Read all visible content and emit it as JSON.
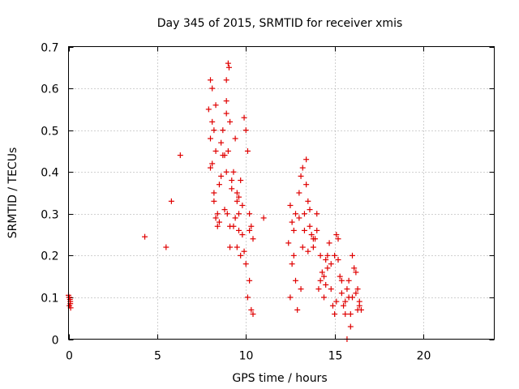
{
  "chart_data": {
    "type": "scatter",
    "title": "Day 345 of 2015, SRMTID for receiver xmis",
    "xlabel": "GPS time / hours",
    "ylabel": "SRMTID / TECUs",
    "xlim": [
      0,
      24
    ],
    "ylim": [
      0,
      0.7
    ],
    "xticks": [
      0,
      5,
      10,
      15,
      20
    ],
    "yticks": [
      0,
      0.1,
      0.2,
      0.3,
      0.4,
      0.5,
      0.6,
      0.7
    ],
    "xtick_labels": [
      "0",
      "5",
      "10",
      "15",
      "20"
    ],
    "ytick_labels": [
      "0",
      "0.1",
      "0.2",
      "0.3",
      "0.4",
      "0.5",
      "0.6",
      "0.7"
    ],
    "grid": true,
    "marker": "+",
    "color": "#e00000",
    "series": [
      {
        "name": "SRMTID",
        "x": [
          0.0,
          0.05,
          0.1,
          0.05,
          0.1,
          0.08,
          0.12,
          0.03,
          4.3,
          5.5,
          5.8,
          6.3,
          7.9,
          8.0,
          8.1,
          8.2,
          8.3,
          8.1,
          8.0,
          8.2,
          8.4,
          8.5,
          8.6,
          8.3,
          8.7,
          8.8,
          8.9,
          9.0,
          8.9,
          9.05,
          8.9,
          9.1,
          8.95,
          9.2,
          9.3,
          9.1,
          9.4,
          9.5,
          9.6,
          9.7,
          9.8,
          9.5,
          9.9,
          10.0,
          10.1,
          10.2,
          9.7,
          10.3,
          10.4,
          10.2,
          10.3,
          8.2,
          8.4,
          8.6,
          8.8,
          9.0,
          9.2,
          9.4,
          9.6,
          9.8,
          10.0,
          8.1,
          8.5,
          9.1,
          9.6,
          10.1,
          8.3,
          8.9,
          9.3,
          9.9,
          10.2,
          8.0,
          8.7,
          9.5,
          10.4,
          11.0,
          12.4,
          12.5,
          12.6,
          12.7,
          12.8,
          12.5,
          12.9,
          13.0,
          13.1,
          13.2,
          13.3,
          13.4,
          13.5,
          13.6,
          13.7,
          13.8,
          13.2,
          13.9,
          14.0,
          14.1,
          14.2,
          14.3,
          14.4,
          14.5,
          14.6,
          14.7,
          14.8,
          14.9,
          15.0,
          15.1,
          15.2,
          15.3,
          15.4,
          15.5,
          15.6,
          15.7,
          15.8,
          15.9,
          16.0,
          16.1,
          16.2,
          16.3,
          16.4,
          16.5,
          12.6,
          13.0,
          13.4,
          13.8,
          14.2,
          14.6,
          15.0,
          15.4,
          15.8,
          16.2,
          12.7,
          13.1,
          13.5,
          14.0,
          14.5,
          15.1,
          15.6,
          16.0,
          16.4,
          12.8,
          13.3,
          13.6,
          14.4,
          14.8,
          15.2,
          15.9,
          16.3,
          15.7
        ],
        "y": [
          0.105,
          0.1,
          0.09,
          0.08,
          0.085,
          0.095,
          0.075,
          0.1,
          0.245,
          0.22,
          0.33,
          0.44,
          0.55,
          0.62,
          0.6,
          0.5,
          0.45,
          0.52,
          0.41,
          0.35,
          0.3,
          0.28,
          0.47,
          0.56,
          0.5,
          0.44,
          0.54,
          0.66,
          0.62,
          0.65,
          0.4,
          0.52,
          0.3,
          0.36,
          0.27,
          0.22,
          0.48,
          0.33,
          0.3,
          0.38,
          0.25,
          0.22,
          0.53,
          0.5,
          0.45,
          0.3,
          0.2,
          0.27,
          0.24,
          0.14,
          0.07,
          0.33,
          0.27,
          0.39,
          0.31,
          0.45,
          0.38,
          0.29,
          0.26,
          0.32,
          0.18,
          0.42,
          0.37,
          0.27,
          0.34,
          0.1,
          0.29,
          0.57,
          0.4,
          0.21,
          0.26,
          0.48,
          0.44,
          0.35,
          0.06,
          0.29,
          0.23,
          0.32,
          0.28,
          0.2,
          0.14,
          0.1,
          0.07,
          0.35,
          0.39,
          0.41,
          0.3,
          0.43,
          0.33,
          0.27,
          0.25,
          0.22,
          0.22,
          0.24,
          0.26,
          0.12,
          0.2,
          0.16,
          0.1,
          0.13,
          0.2,
          0.23,
          0.18,
          0.08,
          0.06,
          0.25,
          0.24,
          0.15,
          0.11,
          0.08,
          0.09,
          0.12,
          0.14,
          0.03,
          0.2,
          0.17,
          0.11,
          0.12,
          0.09,
          0.07,
          0.18,
          0.29,
          0.37,
          0.24,
          0.14,
          0.17,
          0.2,
          0.14,
          0.1,
          0.16,
          0.26,
          0.12,
          0.21,
          0.3,
          0.19,
          0.09,
          0.06,
          0.1,
          0.08,
          0.3,
          0.26,
          0.31,
          0.15,
          0.12,
          0.19,
          0.06,
          0.07,
          0.0
        ]
      }
    ]
  }
}
